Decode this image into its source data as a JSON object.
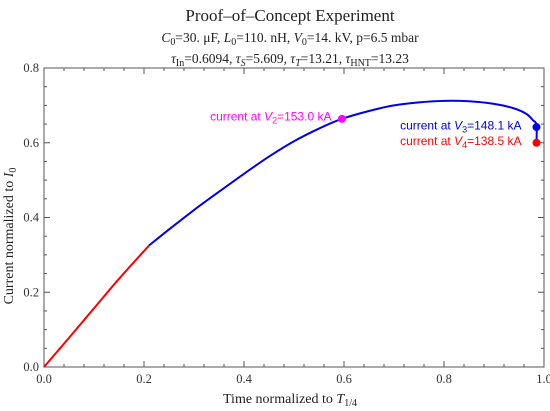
{
  "chart_data": {
    "type": "line",
    "title": "Proof–of–Concept Experiment",
    "subtitle_lines": [
      {
        "parts": [
          {
            "t": "C",
            "i": true
          },
          {
            "t": "0",
            "s": true
          },
          {
            "t": "=30. μF, "
          },
          {
            "t": "L",
            "i": true
          },
          {
            "t": "0",
            "s": true
          },
          {
            "t": "=110. nH, "
          },
          {
            "t": "V",
            "i": true
          },
          {
            "t": "0",
            "s": true
          },
          {
            "t": "=14. kV, p=6.5 mbar"
          }
        ]
      },
      {
        "parts": [
          {
            "t": "τ",
            "i": true
          },
          {
            "t": "In",
            "s": true
          },
          {
            "t": "=0.6094, "
          },
          {
            "t": "τ",
            "i": true
          },
          {
            "t": "S",
            "s": true,
            "i": true
          },
          {
            "t": "=5.609, "
          },
          {
            "t": "τ",
            "i": true
          },
          {
            "t": "T",
            "s": true,
            "i": true
          },
          {
            "t": "=13.21, "
          },
          {
            "t": "τ",
            "i": true
          },
          {
            "t": "HNT",
            "s": true
          },
          {
            "t": "=13.23"
          }
        ]
      }
    ],
    "xlabel_parts": [
      {
        "t": "Time normalized to "
      },
      {
        "t": "T",
        "i": true
      },
      {
        "t": "1/4",
        "s": true
      }
    ],
    "ylabel_parts": [
      {
        "t": "Current normalized to "
      },
      {
        "t": "I",
        "i": true
      },
      {
        "t": "0",
        "s": true
      }
    ],
    "xlim": [
      0,
      1.0
    ],
    "ylim": [
      0,
      0.8
    ],
    "xticks": [
      0.0,
      0.2,
      0.4,
      0.6,
      0.8,
      1.0
    ],
    "xtick_labels": [
      "0.0",
      "0.2",
      "0.4",
      "0.6",
      "0.8",
      "1.0"
    ],
    "yticks": [
      0.0,
      0.2,
      0.4,
      0.6,
      0.8
    ],
    "ytick_labels": [
      "0.0",
      "0.2",
      "0.4",
      "0.6",
      "0.8"
    ],
    "grid": false,
    "series": [
      {
        "color": "#ff0000",
        "x": [
          0.0,
          0.05,
          0.1,
          0.15,
          0.21
        ],
        "y": [
          0.0,
          0.078,
          0.157,
          0.236,
          0.325
        ]
      },
      {
        "color": "#0000ee",
        "x": [
          0.21,
          0.25,
          0.3,
          0.35,
          0.4,
          0.45,
          0.5,
          0.55,
          0.596,
          0.65,
          0.7,
          0.75,
          0.8,
          0.85,
          0.9,
          0.94,
          0.965,
          0.978,
          0.985,
          0.985
        ],
        "y": [
          0.325,
          0.368,
          0.42,
          0.469,
          0.517,
          0.563,
          0.604,
          0.638,
          0.664,
          0.685,
          0.7,
          0.708,
          0.712,
          0.711,
          0.704,
          0.692,
          0.677,
          0.66,
          0.648,
          0.6
        ]
      }
    ],
    "points": [
      {
        "x": 0.596,
        "y": 0.664,
        "color": "#ff00ff"
      },
      {
        "x": 0.985,
        "y": 0.642,
        "color": "#0000ee"
      },
      {
        "x": 0.985,
        "y": 0.6,
        "color": "#ff0000"
      }
    ],
    "annotations": [
      {
        "color": "#ff00ff",
        "anchor": "end",
        "at": [
          0.575,
          0.659
        ],
        "parts": [
          {
            "t": "current at "
          },
          {
            "t": "V",
            "i": true
          },
          {
            "t": "2",
            "s": true
          },
          {
            "t": "=153.0 kA"
          }
        ]
      },
      {
        "color": "#0000ee",
        "anchor": "end",
        "at": [
          0.955,
          0.635
        ],
        "parts": [
          {
            "t": "current at "
          },
          {
            "t": "V",
            "i": true
          },
          {
            "t": "3",
            "s": true
          },
          {
            "t": "=148.1 kA"
          }
        ]
      },
      {
        "color": "#ff0000",
        "anchor": "end",
        "at": [
          0.955,
          0.594
        ],
        "parts": [
          {
            "t": "current at "
          },
          {
            "t": "V",
            "i": true
          },
          {
            "t": "4",
            "s": true
          },
          {
            "t": "=138.5 kA"
          }
        ]
      }
    ]
  }
}
